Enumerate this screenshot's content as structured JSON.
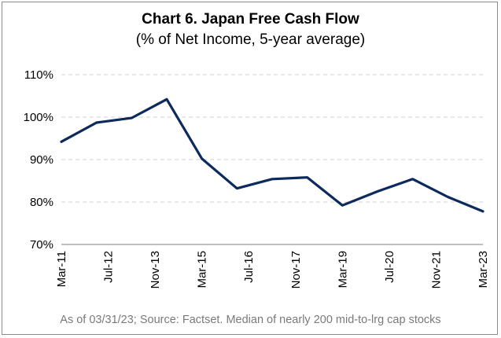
{
  "title": "Chart 6. Japan Free Cash Flow",
  "subtitle": "(% of Net Income, 5-year average)",
  "footnote": "As of 03/31/23; Source: Factset. Median of nearly 200 mid-to-lrg cap stocks",
  "colors": {
    "line": "#0d2a5c",
    "grid": "#d0d0d0",
    "axis": "#7f7f7f"
  },
  "chart_data": {
    "type": "line",
    "title": "Chart 6. Japan Free Cash Flow",
    "subtitle": "(% of Net Income, 5-year average)",
    "xlabel": "",
    "ylabel": "",
    "ylim": [
      70,
      110
    ],
    "yticks": [
      70,
      80,
      90,
      100,
      110
    ],
    "ytick_labels": [
      "70%",
      "80%",
      "90%",
      "100%",
      "110%"
    ],
    "grid": "horizontal dashed",
    "legend": "none",
    "xtick_labels": [
      "Mar-11",
      "Jul-12",
      "Nov-13",
      "Mar-15",
      "Jul-16",
      "Nov-17",
      "Mar-19",
      "Jul-20",
      "Nov-21",
      "Mar-23"
    ],
    "series": [
      {
        "values": [
          94.2,
          98.7,
          99.8,
          104.2,
          90.2,
          83.2,
          85.4,
          85.8,
          79.2,
          82.5,
          85.4,
          81.2,
          77.8
        ]
      }
    ]
  }
}
